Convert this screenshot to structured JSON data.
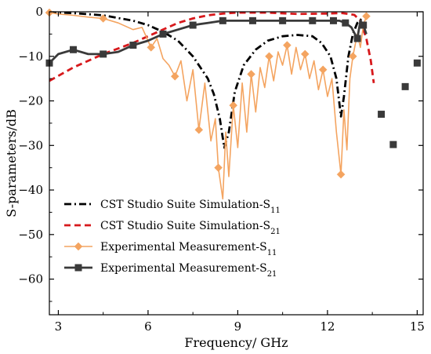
{
  "chart_data": {
    "type": "line",
    "xlabel": "Frequency/ GHz",
    "ylabel": "S-parameters/dB",
    "xlim": [
      2.7,
      15.2
    ],
    "ylim": [
      -68,
      0
    ],
    "xticks": [
      3,
      6,
      9,
      12,
      15
    ],
    "yticks": [
      0,
      -10,
      -20,
      -30,
      -40,
      -50,
      -60
    ],
    "legend_position": "bottom-left",
    "series": [
      {
        "name": "CST Studio Suite Simulation-S",
        "sub": "11",
        "style": "dashdot",
        "color": "#000000",
        "marker": "none",
        "x": [
          2.7,
          3.5,
          4.5,
          5.5,
          6.0,
          6.5,
          7.0,
          7.5,
          8.0,
          8.2,
          8.4,
          8.55,
          8.7,
          8.9,
          9.2,
          9.6,
          10.0,
          10.5,
          11.0,
          11.5,
          11.8,
          12.1,
          12.3,
          12.45,
          12.55,
          12.7,
          12.85,
          13.0,
          13.2
        ],
        "values": [
          -0.1,
          -0.3,
          -0.8,
          -2.0,
          -3.0,
          -4.5,
          -6.5,
          -10.0,
          -15.0,
          -18.5,
          -24.0,
          -30.5,
          -27.0,
          -18.0,
          -12.0,
          -8.5,
          -6.5,
          -5.5,
          -5.2,
          -5.5,
          -7.0,
          -10.0,
          -15.0,
          -23.5,
          -19.0,
          -10.0,
          -5.0,
          -2.5,
          -1.2
        ]
      },
      {
        "name": "CST Studio Suite Simulation-S",
        "sub": "21",
        "style": "dashed",
        "color": "#d7191c",
        "marker": "none",
        "x": [
          2.7,
          3.5,
          4.5,
          5.5,
          6.0,
          6.5,
          7.0,
          7.5,
          8.0,
          8.5,
          9.0,
          10.0,
          11.0,
          12.0,
          12.5,
          12.9,
          13.1,
          13.3,
          13.45,
          13.55
        ],
        "values": [
          -15.5,
          -12.5,
          -9.5,
          -7.0,
          -5.5,
          -4.0,
          -2.5,
          -1.5,
          -0.8,
          -0.4,
          -0.2,
          -0.2,
          -0.5,
          -0.4,
          -0.3,
          -0.7,
          -2.0,
          -6.0,
          -11.0,
          -16.0
        ]
      },
      {
        "name": "Experimental Measurement-S",
        "sub": "11",
        "style": "solid",
        "color": "#f4a460",
        "marker": "diamond",
        "x": [
          2.7,
          3.0,
          3.5,
          4.0,
          4.5,
          5.0,
          5.5,
          5.8,
          6.1,
          6.3,
          6.5,
          6.7,
          6.9,
          7.1,
          7.3,
          7.5,
          7.7,
          7.9,
          8.1,
          8.25,
          8.35,
          8.5,
          8.6,
          8.7,
          8.85,
          9.0,
          9.15,
          9.3,
          9.45,
          9.6,
          9.75,
          9.9,
          10.05,
          10.2,
          10.35,
          10.5,
          10.65,
          10.8,
          10.95,
          11.1,
          11.25,
          11.4,
          11.55,
          11.7,
          11.85,
          12.0,
          12.15,
          12.3,
          12.45,
          12.55,
          12.65,
          12.75,
          12.85,
          13.0,
          13.1,
          13.2,
          13.3
        ],
        "values": [
          -0.2,
          -0.5,
          -0.8,
          -1.2,
          -1.5,
          -2.5,
          -4.0,
          -3.5,
          -8.0,
          -6.0,
          -10.5,
          -12.0,
          -14.5,
          -11.0,
          -20.0,
          -13.0,
          -26.5,
          -16.0,
          -29.0,
          -24.0,
          -35.0,
          -42.0,
          -27.0,
          -37.0,
          -21.0,
          -30.5,
          -16.0,
          -27.0,
          -14.0,
          -22.5,
          -12.5,
          -17.0,
          -10.0,
          -15.5,
          -9.0,
          -12.0,
          -7.5,
          -14.0,
          -8.0,
          -13.0,
          -9.5,
          -15.0,
          -11.0,
          -17.5,
          -13.0,
          -19.0,
          -15.0,
          -27.0,
          -36.5,
          -22.0,
          -31.0,
          -15.0,
          -10.0,
          -5.0,
          -8.0,
          -3.0,
          -1.0
        ]
      },
      {
        "name": "Experimental Measurement-S",
        "sub": "21",
        "style": "solid",
        "color": "#3a3a3a",
        "marker": "square",
        "x": [
          2.7,
          3.0,
          3.5,
          4.0,
          4.5,
          5.0,
          5.5,
          6.0,
          6.5,
          7.0,
          7.5,
          8.0,
          8.5,
          9.0,
          9.5,
          10.0,
          10.5,
          11.0,
          11.5,
          12.0,
          12.2,
          12.4,
          12.6,
          12.8,
          13.0,
          13.1,
          13.2,
          13.3
        ],
        "values": [
          -11.5,
          -9.5,
          -8.5,
          -9.5,
          -9.5,
          -9.0,
          -7.5,
          -6.5,
          -5.0,
          -4.0,
          -3.0,
          -2.5,
          -2.0,
          -2.0,
          -2.0,
          -2.0,
          -2.0,
          -2.0,
          -2.0,
          -2.0,
          -2.0,
          -2.0,
          -2.5,
          -3.5,
          -6.0,
          -2.0,
          -3.0,
          -5.0
        ]
      },
      {
        "name": "",
        "style": "none",
        "color": "#3a3a3a",
        "marker": "square",
        "x": [
          13.8,
          14.2,
          14.6,
          15.0
        ],
        "values": [
          -23.0,
          -29.8,
          -16.8,
          -11.5
        ]
      }
    ]
  }
}
